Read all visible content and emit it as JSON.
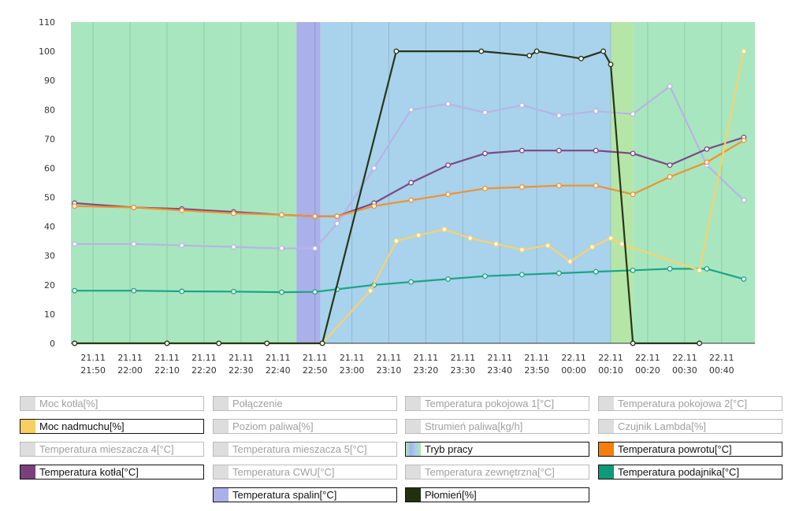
{
  "chart_data": {
    "type": "line",
    "ylim": [
      0,
      110
    ],
    "yticks": [
      0,
      10,
      20,
      30,
      40,
      50,
      60,
      70,
      80,
      90,
      100,
      110
    ],
    "x_ticks": [
      {
        "date": "21.11",
        "time": "21:50"
      },
      {
        "date": "21.11",
        "time": "22:00"
      },
      {
        "date": "21.11",
        "time": "22:10"
      },
      {
        "date": "21.11",
        "time": "22:20"
      },
      {
        "date": "21.11",
        "time": "22:30"
      },
      {
        "date": "21.11",
        "time": "22:40"
      },
      {
        "date": "21.11",
        "time": "22:50"
      },
      {
        "date": "21.11",
        "time": "23:00"
      },
      {
        "date": "21.11",
        "time": "23:10"
      },
      {
        "date": "21.11",
        "time": "23:20"
      },
      {
        "date": "21.11",
        "time": "23:30"
      },
      {
        "date": "21.11",
        "time": "23:40"
      },
      {
        "date": "21.11",
        "time": "23:50"
      },
      {
        "date": "22.11",
        "time": "00:00"
      },
      {
        "date": "22.11",
        "time": "00:10"
      },
      {
        "date": "22.11",
        "time": "00:20"
      },
      {
        "date": "22.11",
        "time": "00:30"
      },
      {
        "date": "22.11",
        "time": "00:40"
      }
    ],
    "x_range_minutes": [
      -66,
      119
    ],
    "bands": [
      {
        "name": "Tryb pracy",
        "from": -66,
        "to": -5,
        "color": "#a8e6bf"
      },
      {
        "name": "Tryb pracy",
        "from": -5,
        "to": 1.5,
        "color": "#aab0ea"
      },
      {
        "name": "Tryb pracy",
        "from": 1.5,
        "to": 80,
        "color": "#a9d2ec"
      },
      {
        "name": "Tryb pracy",
        "from": 80,
        "to": 86,
        "color": "#b5e6a8"
      },
      {
        "name": "Tryb pracy",
        "from": 86,
        "to": 119,
        "color": "#a8e6bf"
      }
    ],
    "series": [
      {
        "name": "Temperatura podajnika[°C]",
        "color": "#1aa587",
        "x": [
          -65,
          -49,
          -36,
          -22,
          -9,
          0,
          6,
          16,
          26,
          36,
          46,
          56,
          66,
          76,
          86,
          96,
          106,
          116
        ],
        "y": [
          18,
          18,
          17.8,
          17.7,
          17.5,
          17.6,
          18.5,
          20,
          21,
          22,
          23,
          23.5,
          24,
          24.5,
          25,
          25.5,
          25.5,
          22
        ]
      },
      {
        "name": "Temperatura spalin[°C]",
        "color": "#b6b5e6",
        "x": [
          -65,
          -49,
          -36,
          -22,
          -9,
          0,
          6,
          16,
          26,
          36,
          46,
          56,
          66,
          76,
          86,
          96,
          106,
          116
        ],
        "y": [
          34,
          34,
          33.5,
          33,
          32.5,
          32.5,
          41,
          60,
          80,
          82,
          79,
          81.5,
          78,
          79.5,
          78.5,
          88,
          61,
          49
        ]
      },
      {
        "name": "Temperatura kotła[°C]",
        "color": "#7a4a86",
        "x": [
          -65,
          -49,
          -36,
          -22,
          -9,
          0,
          6,
          16,
          26,
          36,
          46,
          56,
          66,
          76,
          86,
          96,
          106,
          116
        ],
        "y": [
          48,
          46.5,
          46,
          45,
          44,
          43.5,
          43.5,
          48,
          55,
          61,
          65,
          66,
          66,
          66,
          65,
          61,
          66.5,
          70.5
        ]
      },
      {
        "name": "Temperatura powrotu[°C]",
        "color": "#f0922f",
        "x": [
          -65,
          -49,
          -36,
          -22,
          -9,
          0,
          6,
          16,
          26,
          36,
          46,
          56,
          66,
          76,
          86,
          96,
          106,
          116
        ],
        "y": [
          47,
          46.5,
          45.5,
          44.5,
          44,
          43.5,
          43.5,
          47,
          49,
          51,
          53,
          53.5,
          54,
          54,
          51,
          57,
          62,
          69.5
        ]
      },
      {
        "name": "Moc nadmuchu[%]",
        "color": "#f7d36a",
        "x": [
          -65,
          -40,
          -26,
          -13,
          2,
          15,
          22,
          28,
          35,
          42,
          49,
          56,
          63,
          69,
          75,
          80,
          83,
          104,
          116
        ],
        "y": [
          0,
          0,
          0,
          0,
          0,
          18,
          35,
          37,
          39,
          36,
          34,
          32,
          33.5,
          28,
          33,
          36,
          34,
          25,
          100
        ]
      },
      {
        "name": "Płomień[%]",
        "color": "#263619",
        "x": [
          -65,
          -40,
          -26,
          -13,
          2,
          22,
          45,
          58,
          60,
          72,
          78,
          80,
          86,
          104
        ],
        "y": [
          0,
          0,
          0,
          0,
          0,
          100,
          100,
          98.5,
          100,
          97.5,
          100,
          95.5,
          0,
          0
        ]
      }
    ]
  },
  "legend": [
    {
      "label": "Moc kotła[%]",
      "active": false,
      "color": "#dddddd"
    },
    {
      "label": "Połączenie",
      "active": false,
      "color": "#dddddd"
    },
    {
      "label": "Temperatura pokojowa 1[°C]",
      "active": false,
      "color": "#dddddd"
    },
    {
      "label": "Temperatura pokojowa 2[°C]",
      "active": false,
      "color": "#dddddd"
    },
    {
      "label": "Moc nadmuchu[%]",
      "active": true,
      "color": "#f8d061"
    },
    {
      "label": "Poziom paliwa[%]",
      "active": false,
      "color": "#dddddd"
    },
    {
      "label": "Strumień paliwa[kg/h]",
      "active": false,
      "color": "#dddddd"
    },
    {
      "label": "Czujnik Lambda[%]",
      "active": false,
      "color": "#dddddd"
    },
    {
      "label": "Temperatura mieszacza 4[°C]",
      "active": false,
      "color": "#dddddd"
    },
    {
      "label": "Temperatura mieszacza 5[°C]",
      "active": false,
      "color": "#dddddd"
    },
    {
      "label": "Tryb pracy",
      "active": true,
      "color": "multi"
    },
    {
      "label": "Temperatura powrotu[°C]",
      "active": true,
      "color": "#f47f0e"
    },
    {
      "label": "Temperatura kotła[°C]",
      "active": true,
      "color": "#7b3f7c"
    },
    {
      "label": "Temperatura CWU[°C]",
      "active": false,
      "color": "#dddddd"
    },
    {
      "label": "Temperatura zewnętrzna[°C]",
      "active": false,
      "color": "#dddddd"
    },
    {
      "label": "Temperatura podajnika[°C]",
      "active": true,
      "color": "#109a7a"
    },
    {
      "label": "Temperatura spalin[°C]",
      "active": true,
      "color": "#aab0ea"
    },
    {
      "label": "Płomień[%]",
      "active": true,
      "color": "#223010"
    }
  ]
}
